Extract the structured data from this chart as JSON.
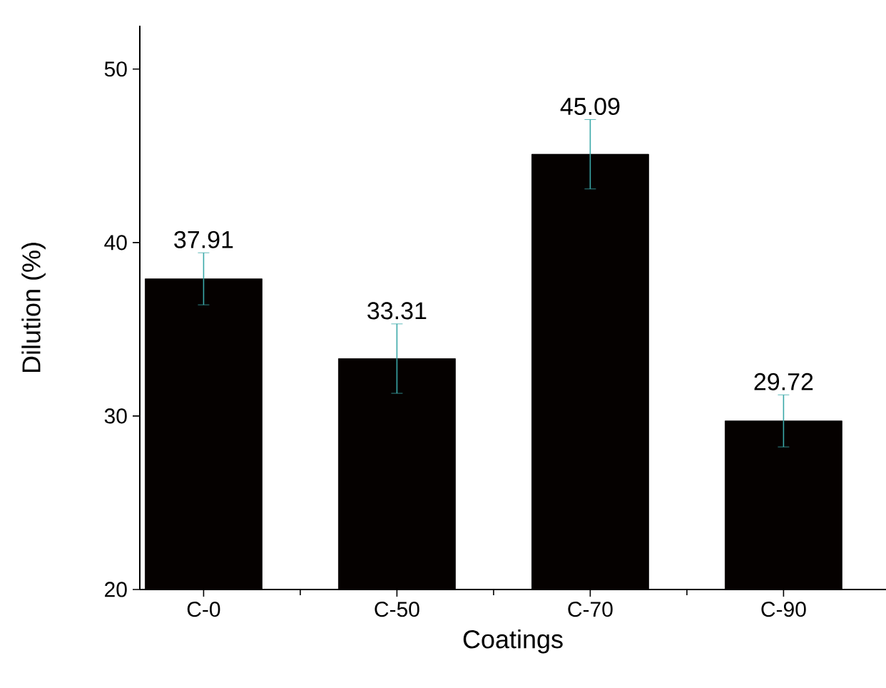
{
  "chart_data": {
    "type": "bar",
    "xlabel": "Coatings",
    "ylabel": "Dilution (%)",
    "categories": [
      "C-0",
      "C-50",
      "C-70",
      "C-90"
    ],
    "values": [
      37.91,
      33.31,
      45.09,
      29.72
    ],
    "errors": [
      1.5,
      2.0,
      2.0,
      1.5
    ],
    "color": "#050100",
    "data_labels": true,
    "ylim": [
      20,
      52.5
    ],
    "yticks": [
      20,
      30,
      40,
      50
    ]
  }
}
